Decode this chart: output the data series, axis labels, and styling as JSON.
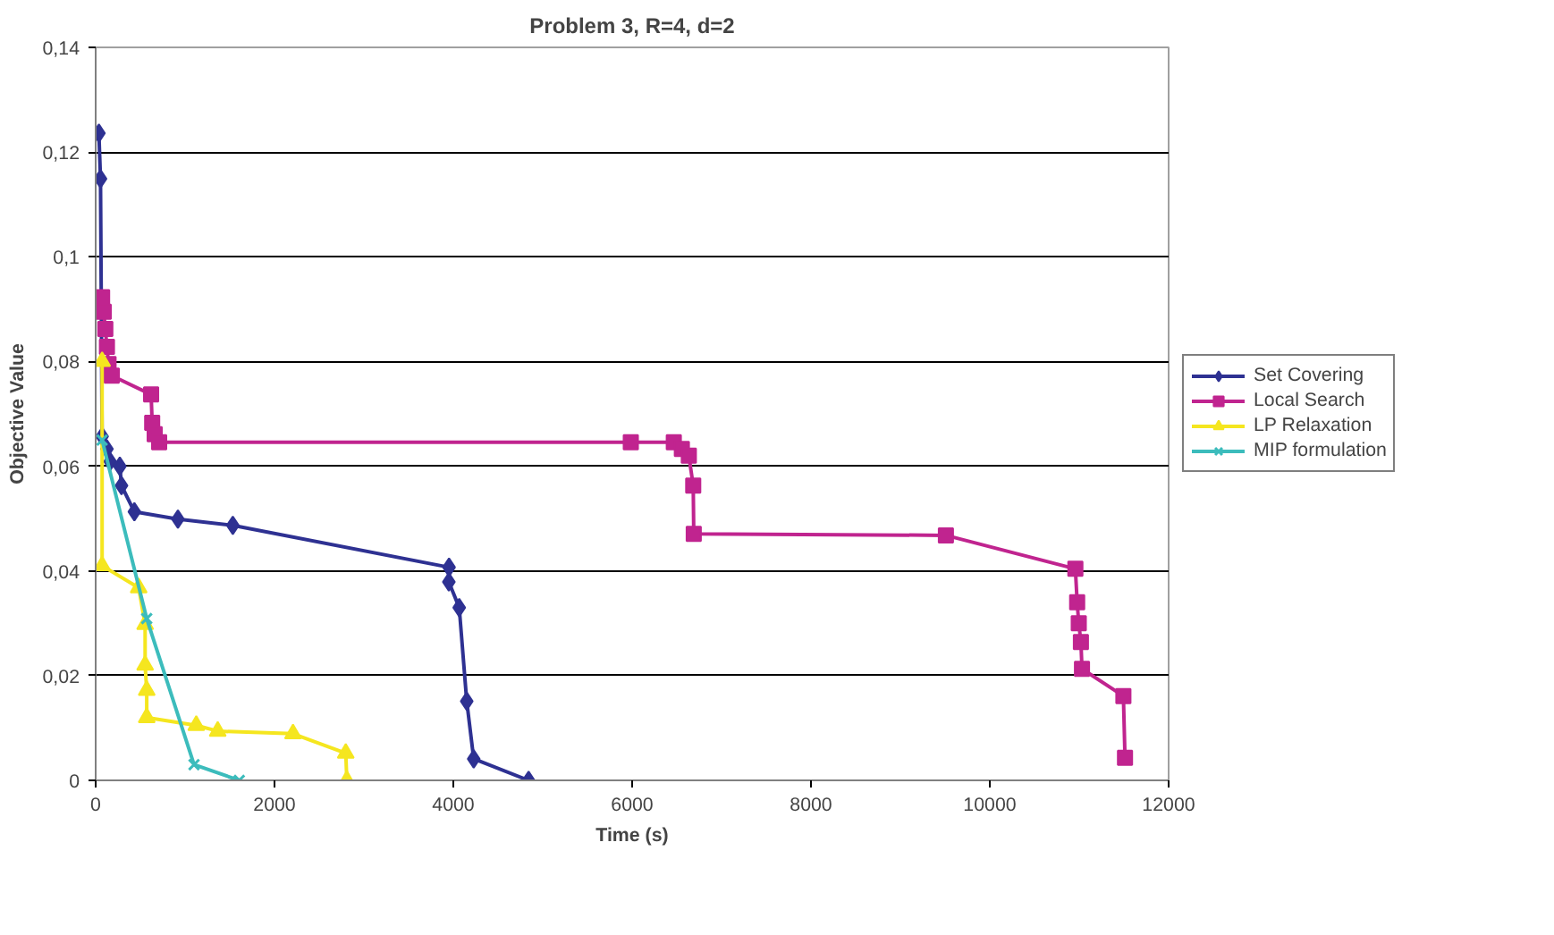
{
  "chart_data": {
    "type": "line",
    "title": "Problem 3, R=4, d=2",
    "xlabel": "Time (s)",
    "ylabel": "Objective Value",
    "xlim": [
      0,
      12000
    ],
    "xticks": [
      0,
      2000,
      4000,
      6000,
      8000,
      10000,
      12000
    ],
    "ylim": [
      0,
      0.14
    ],
    "yticks": [
      {
        "value": 0,
        "label": "0"
      },
      {
        "value": 0.02,
        "label": "0,02"
      },
      {
        "value": 0.04,
        "label": "0,04"
      },
      {
        "value": 0.06,
        "label": "0,06"
      },
      {
        "value": 0.08,
        "label": "0,08"
      },
      {
        "value": 0.1,
        "label": "0,1"
      },
      {
        "value": 0.12,
        "label": "0,12"
      },
      {
        "value": 0.14,
        "label": "0,14"
      }
    ],
    "grid": "y",
    "legend": "right",
    "line_style": "solid",
    "series": [
      {
        "name": "Set Covering",
        "color": "#2e3192",
        "marker": "diamond",
        "x": [
          36,
          54,
          72,
          126,
          162,
          270,
          289,
          433,
          920,
          1534,
          3952,
          3950,
          4066,
          4150,
          4228,
          4842
        ],
        "values": [
          0.1236,
          0.1149,
          0.0657,
          0.0633,
          0.0609,
          0.06,
          0.0563,
          0.0513,
          0.0499,
          0.0487,
          0.0407,
          0.0379,
          0.033,
          0.0151,
          0.0041,
          0
        ]
      },
      {
        "name": "Local Search",
        "color": "#c0248f",
        "marker": "square",
        "x": [
          72,
          90,
          108,
          126,
          144,
          180,
          620,
          632,
          660,
          710,
          5985,
          6466,
          6556,
          6634,
          6683,
          6689,
          9509,
          10957,
          10977,
          10995,
          11019,
          11031,
          11494,
          11512
        ],
        "values": [
          0.0923,
          0.0895,
          0.0862,
          0.0828,
          0.0795,
          0.0773,
          0.0737,
          0.0683,
          0.0661,
          0.0646,
          0.0646,
          0.0646,
          0.0633,
          0.062,
          0.0563,
          0.0471,
          0.0468,
          0.0404,
          0.034,
          0.03,
          0.0264,
          0.0213,
          0.0161,
          0.0043
        ]
      },
      {
        "name": "LP Relaxation",
        "color": "#f5e61f",
        "marker": "triangle",
        "x": [
          72,
          72,
          481,
          553,
          553,
          571,
          571,
          1125,
          1365,
          2207,
          2797,
          2809
        ],
        "values": [
          0.08,
          0.041,
          0.0368,
          0.0298,
          0.022,
          0.0172,
          0.012,
          0.0105,
          0.0094,
          0.0089,
          0.0052,
          0
        ]
      },
      {
        "name": "MIP formulation",
        "color": "#3cbcbc",
        "marker": "cross",
        "x": [
          72,
          571,
          1100,
          1606
        ],
        "values": [
          0.065,
          0.0309,
          0.003,
          0
        ]
      }
    ]
  }
}
